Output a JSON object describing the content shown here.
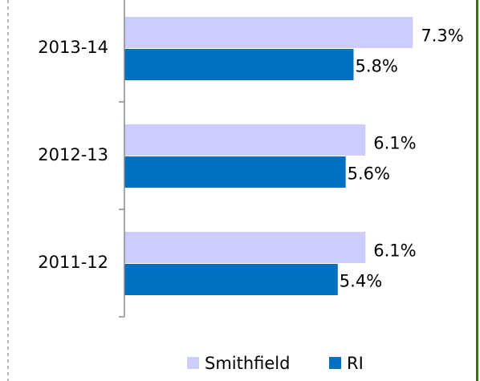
{
  "chart_data": {
    "type": "bar",
    "orientation": "horizontal",
    "categories": [
      "2013-14",
      "2012-13",
      "2011-12"
    ],
    "series": [
      {
        "name": "Smithfield",
        "color": "#ccccff",
        "values": [
          7.3,
          6.1,
          6.1
        ],
        "value_labels": [
          "7.3%",
          "6.1%",
          "6.1%"
        ]
      },
      {
        "name": "RI",
        "color": "#0070c0",
        "values": [
          5.8,
          5.6,
          5.4
        ],
        "value_labels": [
          "5.8%",
          "5.6%",
          "5.4%"
        ]
      }
    ],
    "xlim": [
      0,
      9
    ],
    "legend": "bottom"
  }
}
